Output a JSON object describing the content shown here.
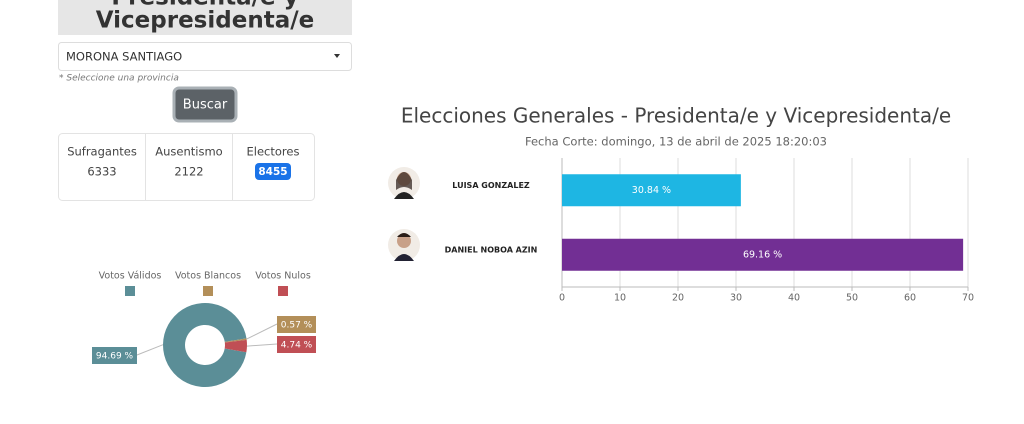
{
  "header": {
    "title_lines": [
      "Presidenta/e y",
      "Vicepresidenta/e"
    ]
  },
  "form": {
    "province": "MORONA SANTIAGO",
    "hint": "* Seleccione una provincia",
    "button": "Buscar"
  },
  "stats": [
    {
      "label": "Sufragantes",
      "value": 6333
    },
    {
      "label": "Ausentismo",
      "value": 2122
    },
    {
      "label": "Electores",
      "value": 8455
    }
  ],
  "chart_data": [
    {
      "type": "donut",
      "categories": [
        "Votos Válidos",
        "Votos Blancos",
        "Votos Nulos"
      ],
      "values": [
        94.69,
        0.57,
        4.74
      ],
      "value_labels": [
        "94.69 %",
        "0.57 %",
        "4.74 %"
      ],
      "colors": [
        "#5b8e97",
        "#b38f59",
        "#c04f55"
      ]
    },
    {
      "type": "hbar",
      "title": "Elecciones Generales - Presidenta/e y Vicepresidenta/e",
      "subtitle": "Fecha Corte: domingo, 13 de abril de 2025 18:20:03",
      "categories": [
        "LUISA GONZALEZ",
        "DANIEL NOBOA AZIN"
      ],
      "values": [
        30.84,
        69.16
      ],
      "value_labels": [
        "30.84 %",
        "69.16 %"
      ],
      "colors": [
        "#1eb6e3",
        "#722f94"
      ],
      "xlim": [
        0,
        70
      ],
      "xticks": [
        0,
        10,
        20,
        30,
        40,
        50,
        60,
        70
      ],
      "grid": true
    }
  ]
}
